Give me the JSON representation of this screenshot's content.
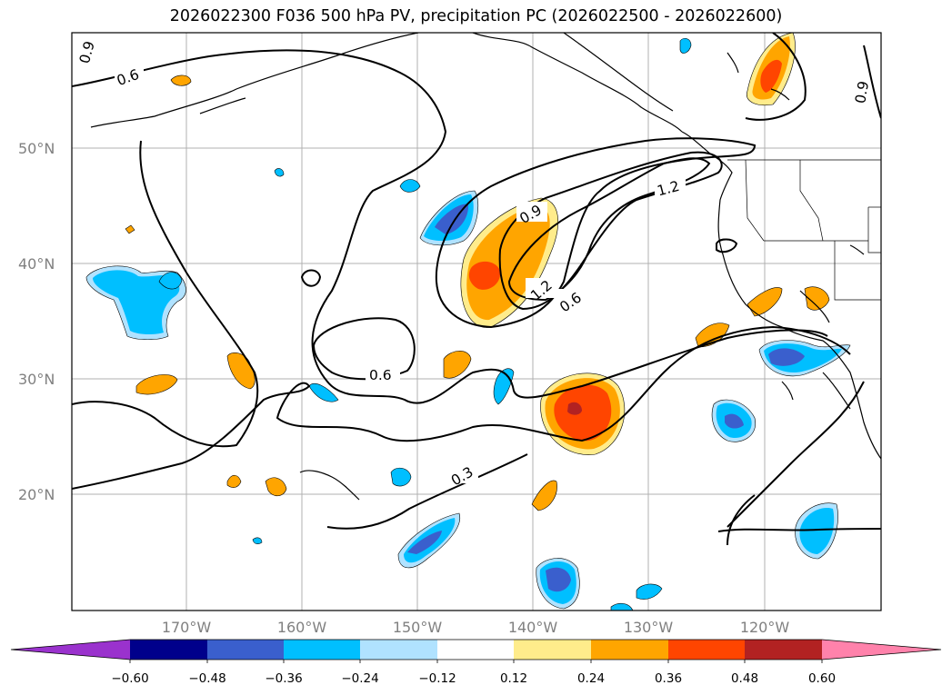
{
  "title": "2026022300 F036 500 hPa PV, precipitation PC (2026022500 - 2026022600)",
  "lat_labels": [
    "50°N",
    "40°N",
    "30°N",
    "20°N"
  ],
  "lon_labels": [
    "170°W",
    "160°W",
    "150°W",
    "140°W",
    "130°W",
    "120°W"
  ],
  "contour_labels": [
    "0.9",
    "0.6",
    "0.9",
    "1.2",
    "1.2",
    "0.6",
    "0.6",
    "0.3",
    "0.9"
  ],
  "colorbar": {
    "tick_labels": [
      "−0.60",
      "−0.48",
      "−0.36",
      "−0.24",
      "−0.12",
      "0.12",
      "0.24",
      "0.36",
      "0.48",
      "0.60"
    ],
    "colors": [
      "#9a32cd",
      "#00008b",
      "#3a5fcd",
      "#00bfff",
      "#b0e2ff",
      "#ffffff",
      "#ffec8b",
      "#ffa500",
      "#ff4500",
      "#b22222",
      "#ff82ab"
    ]
  }
}
